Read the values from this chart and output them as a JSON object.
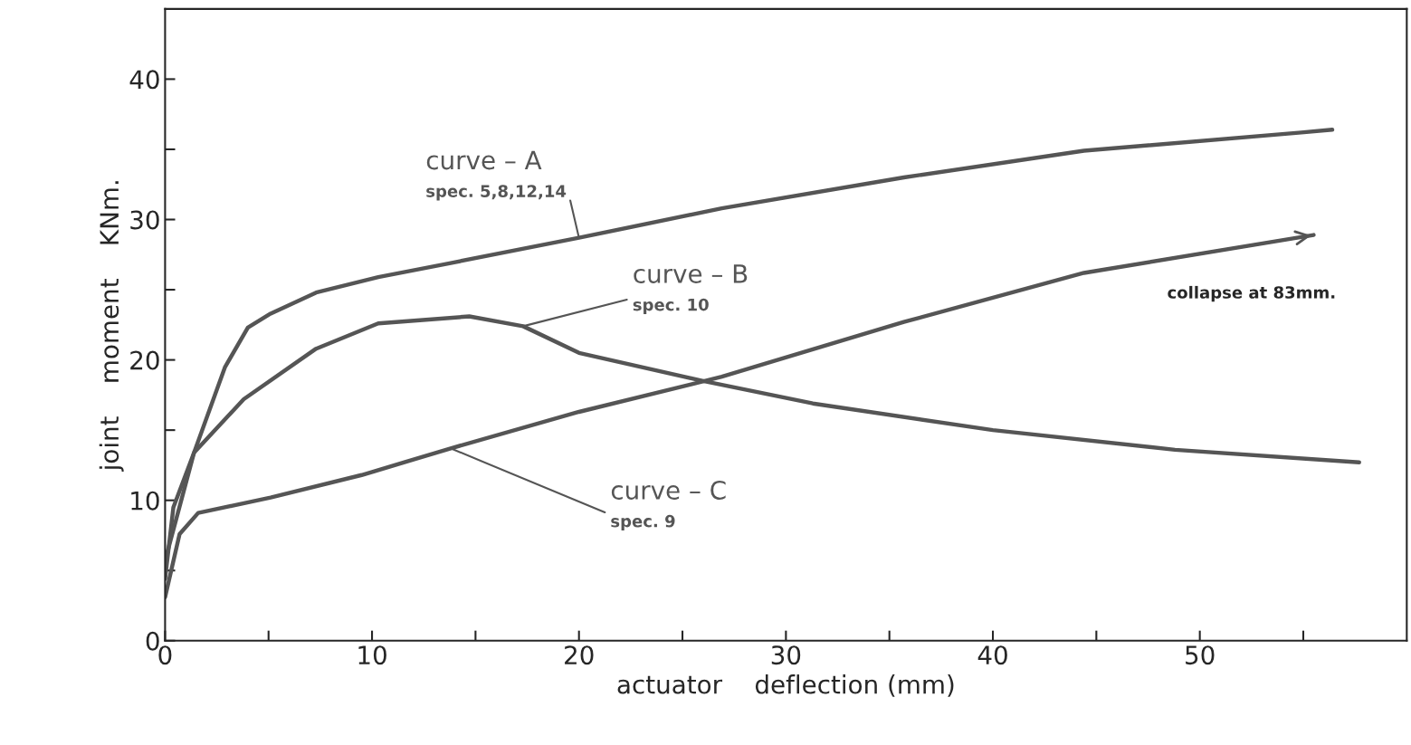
{
  "chart_data": {
    "type": "line",
    "xlabel": "actuator    deflection (mm)",
    "ylabel": "joint    moment    KNm.",
    "xlim": [
      0,
      60
    ],
    "ylim": [
      0,
      45
    ],
    "xticks": [
      0,
      {
        "value": 5,
        "label": null
      },
      10,
      {
        "value": 15,
        "label": null
      },
      20,
      {
        "value": 25,
        "label": null
      },
      30,
      {
        "value": 35,
        "label": null
      },
      40,
      {
        "value": 45,
        "label": null
      },
      50,
      {
        "value": 55,
        "label": null
      }
    ],
    "yticks": [
      0,
      {
        "value": 5,
        "label": null
      },
      10,
      {
        "value": 15,
        "label": null
      },
      20,
      {
        "value": 25,
        "label": null
      },
      30,
      {
        "value": 35,
        "label": null
      },
      40
    ],
    "grid": false,
    "legend": false,
    "marker": "none",
    "line_style": "solid",
    "series": [
      {
        "name": "curve – A",
        "color": "#555555",
        "x": [
          0,
          0.4,
          1.4,
          2.9,
          4,
          5.1,
          7.3,
          10.3,
          13.8,
          20,
          26.9,
          35.7,
          44.4,
          54.9,
          56.4
        ],
        "values": [
          4.4,
          9.5,
          13.4,
          19.5,
          22.3,
          23.3,
          24.8,
          25.9,
          26.9,
          28.7,
          30.8,
          33,
          34.9,
          36.2,
          36.4
        ]
      },
      {
        "name": "curve – B",
        "color": "#555555",
        "x": [
          0,
          1.4,
          3.8,
          7.3,
          10.3,
          14.7,
          17.3,
          20,
          26,
          31.3,
          40,
          48.8,
          57.7
        ],
        "values": [
          5.7,
          13.4,
          17.2,
          20.8,
          22.6,
          23.1,
          22.4,
          20.5,
          18.5,
          16.9,
          15,
          13.6,
          12.7
        ]
      },
      {
        "name": "curve – C",
        "color": "#555555",
        "x": [
          0,
          0.7,
          1.6,
          5.1,
          9.5,
          13.8,
          20,
          26.9,
          35.7,
          44.4,
          55.5
        ],
        "values": [
          3.1,
          7.6,
          9.1,
          10.2,
          11.8,
          13.7,
          16.3,
          18.8,
          22.7,
          26.2,
          28.9
        ]
      }
    ],
    "annotations": [
      {
        "text": "spec. 5,8,12,14",
        "x": 20,
        "y": 28.7
      },
      {
        "text": "spec. 10",
        "x": 17.3,
        "y": 22.4
      },
      {
        "text": "spec. 9",
        "x": 13.8,
        "y": 13.7
      },
      "collapse at 83mm."
    ]
  }
}
